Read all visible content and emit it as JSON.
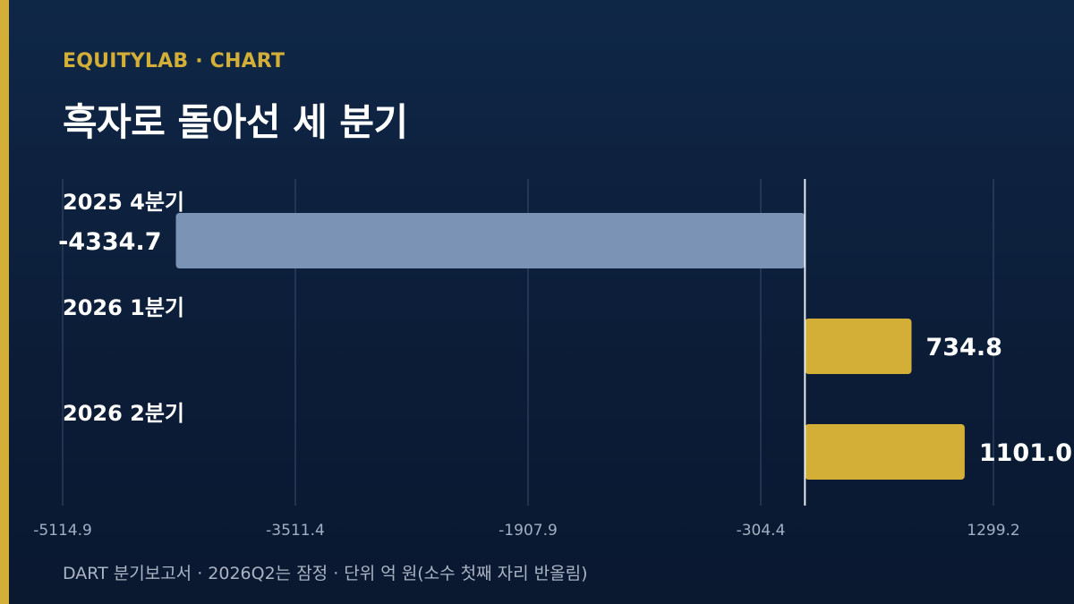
{
  "header": {
    "brand": "EQUITYLAB · CHART",
    "title": "흑자로 돌아선 세 분기"
  },
  "footer": {
    "note": "DART 분기보고서 · 2026Q2는 잠정 · 단위 억 원(소수 첫째 자리 반올림)"
  },
  "colors": {
    "accent": "#d4af37",
    "negative_bar": "#7b93b5",
    "positive_bar": "#d4af37",
    "background": "#0c1d38"
  },
  "chart_data": {
    "type": "bar",
    "orientation": "horizontal",
    "categories": [
      "2025 4분기",
      "2026 1분기",
      "2026 2분기"
    ],
    "values": [
      -4334.7,
      734.8,
      1101.0
    ],
    "value_labels": [
      "-4334.7",
      "734.8",
      "1101.0"
    ],
    "xlim": [
      -5114.9,
      1299.2
    ],
    "x_ticks": [
      -5114.9,
      -3511.4,
      -1907.9,
      -304.4,
      1299.2
    ],
    "x_tick_labels": [
      "-5114.9",
      "-3511.4",
      "-1907.9",
      "-304.4",
      "1299.2"
    ],
    "grid": true,
    "zero_line": true
  }
}
